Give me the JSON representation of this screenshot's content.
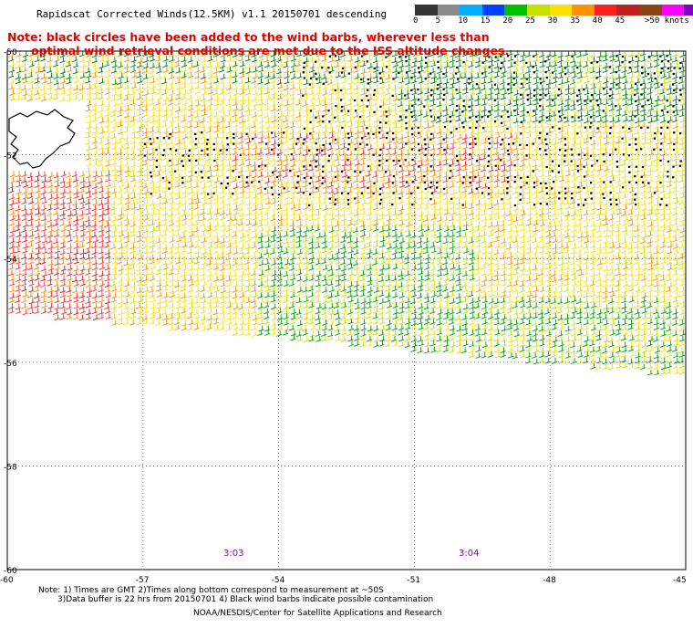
{
  "title": "Rapidscat Corrected Winds(12.5KM) v1.1 20150701 descending",
  "note": {
    "line1": "Note: black circles have been added to the wind barbs, wherever less than",
    "line2": "optimal wind retrieval conditions are met due to the ISS altitude changes."
  },
  "speed_scale": {
    "labels": [
      "0",
      "5",
      "10",
      "15",
      "20",
      "25",
      "30",
      "35",
      "40",
      "45",
      ">50 knots"
    ],
    "colors": [
      "#333333",
      "#8a8a8a",
      "#00b0ff",
      "#0040ff",
      "#00c000",
      "#c8e000",
      "#ffe000",
      "#ff9000",
      "#ff2020",
      "#c02020",
      "#8b4513",
      "#ff00ff",
      "#8000c0"
    ]
  },
  "latitude_labels": [
    "-50",
    "-52",
    "-54",
    "-56",
    "-58",
    "-60"
  ],
  "longitude_labels": [
    "-60",
    "-57",
    "-54",
    "-51",
    "-48",
    "-45"
  ],
  "time_labels": [
    "3:03",
    "3:04"
  ],
  "footer": {
    "line1": "Note: 1) Times are GMT 2)Times along bottom correspond to measurement at ~50S",
    "line2": "3)Data buffer is 22 hrs from 20150701 4) Black wind barbs indicate possible contamination",
    "line3": "NOAA/NESDIS/Center for Satellite Applications and Research"
  }
}
